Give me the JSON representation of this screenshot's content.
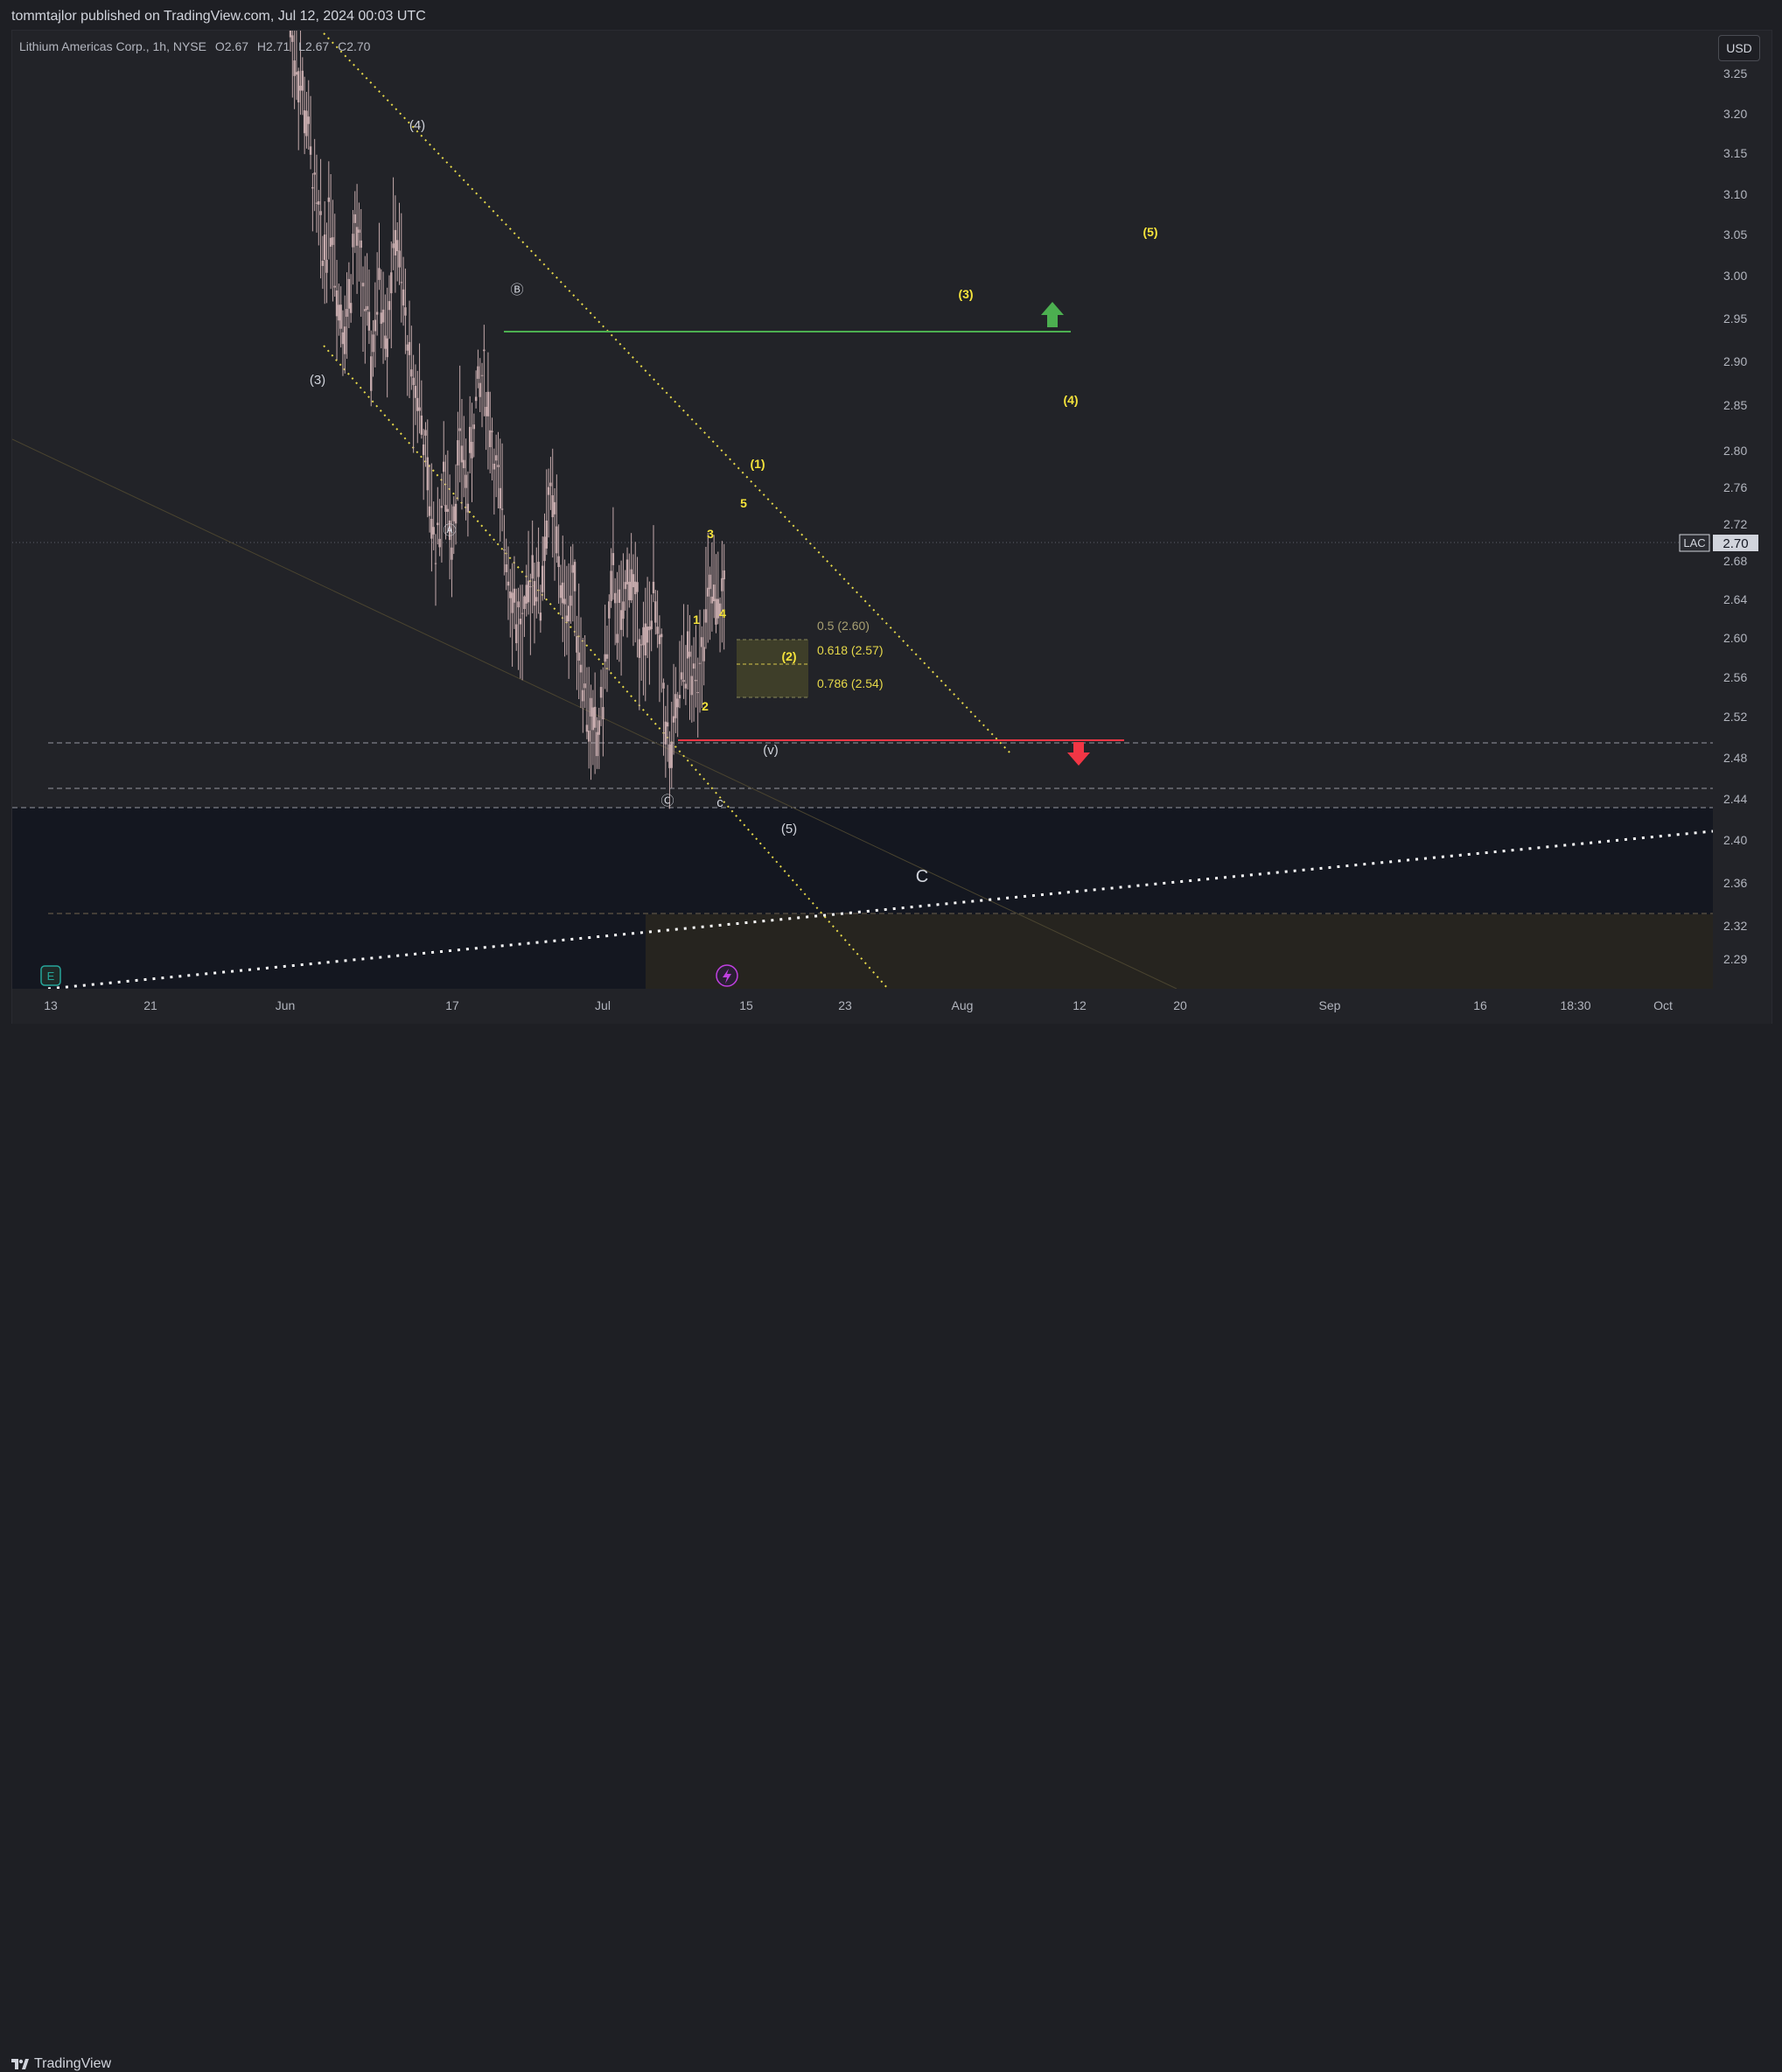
{
  "header": {
    "published": "tommtajlor published on TradingView.com, Jul 12, 2024 00:03 UTC"
  },
  "legend": {
    "symbol": "Lithium Americas Corp., 1h, NYSE",
    "open": "O2.67",
    "high": "H2.71",
    "low": "L2.67",
    "close": "C2.70"
  },
  "currency_button": "USD",
  "price_tag": {
    "ticker": "LAC",
    "price": "2.70"
  },
  "footer": {
    "brand": "TradingView"
  },
  "colors": {
    "background": "#222328",
    "candle": "#c4a9ab",
    "green_line": "#4caf50",
    "red_line": "#f23645",
    "yellow_wave": "#f5e33b",
    "white_wave": "#d1d4dc",
    "fib_zone": "#4a4a2a"
  },
  "chart_data": {
    "type": "candlestick",
    "symbol": "LAC",
    "interval": "1h",
    "last_price": 2.7,
    "y_ticks": [
      3.25,
      3.2,
      3.15,
      3.1,
      3.05,
      3.0,
      2.95,
      2.9,
      2.85,
      2.8,
      2.76,
      2.72,
      2.68,
      2.64,
      2.6,
      2.56,
      2.52,
      2.48,
      2.44,
      2.4,
      2.36,
      2.32,
      2.29
    ],
    "x_ticks": [
      "13",
      "21",
      "Jun",
      "17",
      "Jul",
      "15",
      "23",
      "Aug",
      "12",
      "20",
      "Sep",
      "16",
      "18:30",
      "Oct"
    ],
    "price_path": [
      3.3,
      3.25,
      3.2,
      3.12,
      3.05,
      3.1,
      3.0,
      2.98,
      3.08,
      3.02,
      2.94,
      3.02,
      2.98,
      3.08,
      3.0,
      2.92,
      2.9,
      2.8,
      2.74,
      2.8,
      2.76,
      2.85,
      2.8,
      2.9,
      2.92,
      2.85,
      2.78,
      2.72,
      2.66,
      2.64,
      2.72,
      2.68,
      2.8,
      2.74,
      2.66,
      2.7,
      2.62,
      2.55,
      2.52,
      2.6,
      2.7,
      2.64,
      2.72,
      2.66,
      2.62,
      2.68,
      2.6,
      2.5,
      2.56,
      2.62,
      2.58,
      2.64,
      2.68,
      2.66,
      2.7
    ],
    "horizontal_levels": [
      {
        "price": 2.935,
        "style": "solid",
        "color": "green"
      },
      {
        "price": 2.5,
        "style": "solid",
        "color": "red"
      },
      {
        "price": 2.496,
        "style": "dashed"
      },
      {
        "price": 2.453,
        "style": "dashed"
      },
      {
        "price": 2.436,
        "style": "dashed"
      },
      {
        "price": 2.336,
        "style": "dashed"
      }
    ],
    "fib_levels": [
      {
        "label": "0.5 (2.60)",
        "price": 2.6
      },
      {
        "label": "0.618 (2.57)",
        "price": 2.57
      },
      {
        "label": "0.786 (2.54)",
        "price": 2.54
      }
    ],
    "wave_labels_yellow": [
      "(1)",
      "(2)",
      "(3)",
      "(4)",
      "(5)",
      "1",
      "2",
      "3",
      "4",
      "5"
    ],
    "wave_labels_white": [
      "(3)",
      "(4)",
      "Ⓑ",
      "Ⓐ",
      "Ⓒ",
      "(v)",
      "c",
      "(5)",
      "C"
    ],
    "annotations": [
      "green up arrow at 2.95",
      "red down arrow at 2.48"
    ]
  }
}
